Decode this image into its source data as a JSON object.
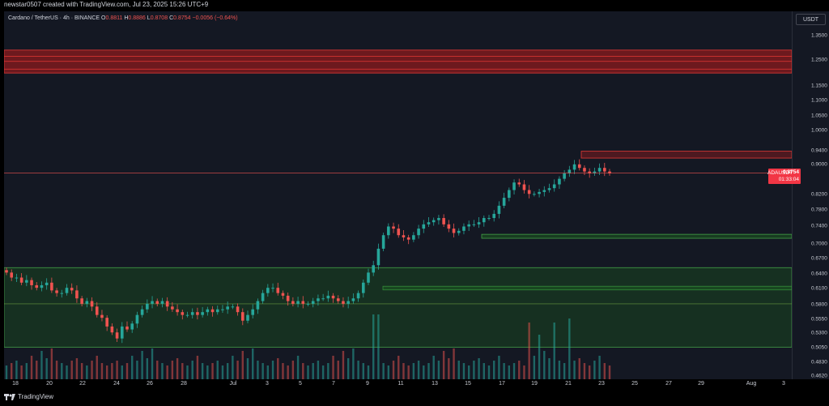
{
  "header": {
    "author_line": "newstar0507 created with TradingView.com, Jul 23, 2025 15:26 UTC+9"
  },
  "symbol": {
    "name": "Cardano / TetherUS · 4h · BINANCE",
    "o_label": "O",
    "o": "0.8811",
    "h_label": "H",
    "h": "0.8886",
    "l_label": "L",
    "l": "0.8708",
    "c_label": "C",
    "c": "0.8754",
    "change": "−0.0056 (−0.64%)"
  },
  "axis": {
    "currency": "USDT",
    "price_ticks": [
      "1.3500",
      "1.2500",
      "1.1500",
      "1.1000",
      "1.0500",
      "1.0000",
      "0.9400",
      "0.9000",
      "0.8200",
      "0.7800",
      "0.7400",
      "0.7000",
      "0.6700",
      "0.6400",
      "0.6100",
      "0.5800",
      "0.5550",
      "0.5300",
      "0.5050",
      "0.4830",
      "0.4620"
    ],
    "time_ticks": [
      "18",
      "20",
      "22",
      "24",
      "26",
      "28",
      "Jul",
      "3",
      "5",
      "7",
      "9",
      "11",
      "13",
      "15",
      "17",
      "19",
      "21",
      "23",
      "25",
      "27",
      "29",
      "Aug",
      "3"
    ]
  },
  "last_price": {
    "ticker": "ADAUSDT",
    "price": "0.8754",
    "countdown": "01:33:04"
  },
  "colors": {
    "up": "#26a69a",
    "down": "#ef5350",
    "resistance_zone": "#b71c1c",
    "support_zone": "#1b5e20",
    "background": "#141823"
  },
  "footer": {
    "brand": "TradingView",
    "logo_icon": "tradingview-logo-icon"
  },
  "chart_data": {
    "type": "candlestick",
    "title": "Cardano / TetherUS · 4h · BINANCE",
    "y_scale": "log",
    "ylim": [
      0.462,
      1.4
    ],
    "x_labels": [
      "18",
      "20",
      "22",
      "24",
      "26",
      "28",
      "Jul",
      "3",
      "5",
      "7",
      "9",
      "11",
      "13",
      "15",
      "17",
      "19",
      "21",
      "23",
      "25",
      "27",
      "29",
      "Aug",
      "3"
    ],
    "last_price": 0.8754,
    "zones": [
      {
        "kind": "resistance",
        "low": 1.2,
        "high": 1.29
      },
      {
        "kind": "resistance",
        "low": 0.918,
        "high": 0.938
      },
      {
        "kind": "support",
        "low": 0.713,
        "high": 0.722
      },
      {
        "kind": "support",
        "low": 0.606,
        "high": 0.613
      },
      {
        "kind": "support",
        "low": 0.506,
        "high": 0.65
      }
    ],
    "candles_close": [
      0.64,
      0.63,
      0.63,
      0.62,
      0.625,
      0.615,
      0.61,
      0.615,
      0.62,
      0.605,
      0.6,
      0.6,
      0.61,
      0.605,
      0.59,
      0.58,
      0.585,
      0.575,
      0.56,
      0.555,
      0.54,
      0.53,
      0.52,
      0.54,
      0.535,
      0.545,
      0.56,
      0.57,
      0.58,
      0.585,
      0.58,
      0.585,
      0.575,
      0.57,
      0.565,
      0.56,
      0.56,
      0.565,
      0.56,
      0.565,
      0.57,
      0.565,
      0.57,
      0.57,
      0.575,
      0.575,
      0.565,
      0.55,
      0.56,
      0.57,
      0.585,
      0.6,
      0.61,
      0.61,
      0.6,
      0.595,
      0.585,
      0.58,
      0.585,
      0.58,
      0.58,
      0.585,
      0.59,
      0.59,
      0.595,
      0.59,
      0.585,
      0.58,
      0.585,
      0.59,
      0.6,
      0.62,
      0.64,
      0.655,
      0.69,
      0.72,
      0.74,
      0.735,
      0.72,
      0.715,
      0.71,
      0.72,
      0.735,
      0.745,
      0.75,
      0.755,
      0.76,
      0.745,
      0.735,
      0.725,
      0.73,
      0.74,
      0.745,
      0.745,
      0.75,
      0.76,
      0.76,
      0.77,
      0.79,
      0.81,
      0.83,
      0.85,
      0.845,
      0.83,
      0.82,
      0.82,
      0.825,
      0.83,
      0.835,
      0.845,
      0.86,
      0.875,
      0.885,
      0.9,
      0.89,
      0.88,
      0.875,
      0.88,
      0.89,
      0.88,
      0.8754
    ],
    "volume_peaks_relative": [
      0.3,
      0.4,
      0.5,
      0.3,
      0.4,
      0.7,
      0.5,
      0.9,
      0.6,
      1.0,
      0.5,
      0.4,
      0.3,
      0.5,
      0.6,
      0.4,
      0.3,
      0.5,
      0.7,
      0.4
    ]
  }
}
